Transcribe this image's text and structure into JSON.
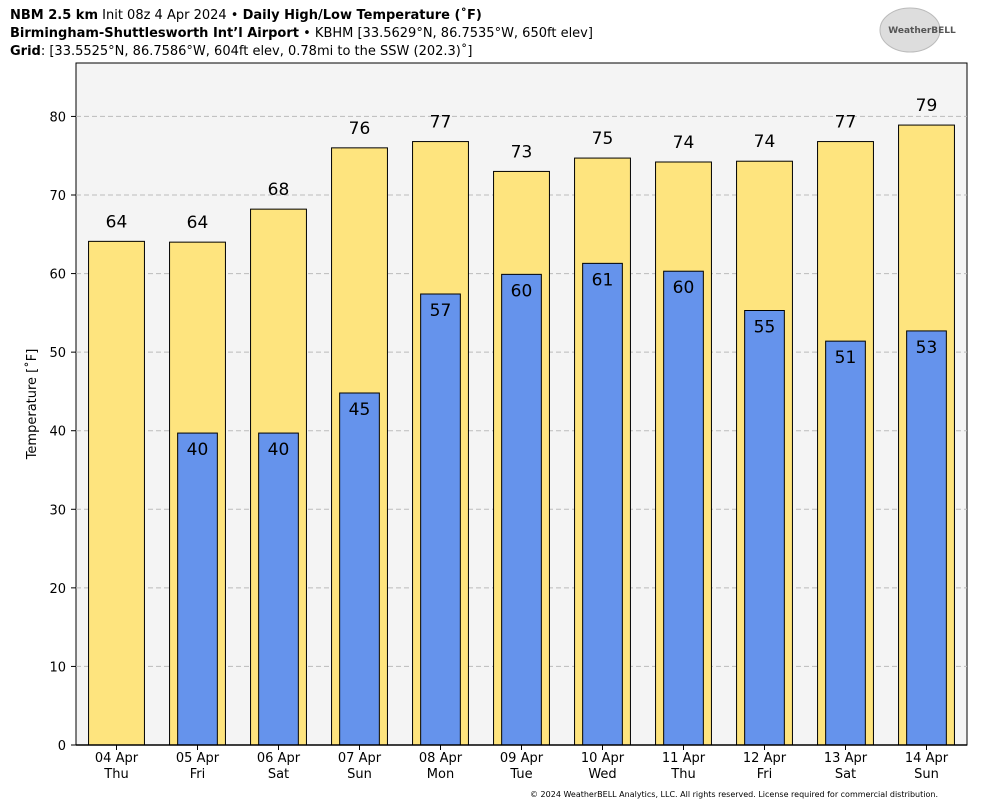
{
  "chart_data": {
    "type": "bar",
    "title_parts": [
      "NBM 2.5 km",
      "Init 08z 4 Apr 2024",
      "Daily High/Low Temperature (˚F)"
    ],
    "location_parts": [
      "Birmingham-Shuttlesworth Int’l Airport",
      "KBHM [33.5629°N, 86.7535°W, 650ft elev]"
    ],
    "grid_parts": [
      "Grid",
      ": [33.5525°N, 86.7586°W, 604ft elev, 0.78mi to the SSW (202.3)˚]"
    ],
    "logo": "WeatherBELL",
    "footer": "© 2024 WeatherBELL Analytics, LLC. All rights reserved. License required for commercial distribution.",
    "ylabel": "Temperature [˚F]",
    "categories": [
      "04 Apr",
      "05 Apr",
      "06 Apr",
      "07 Apr",
      "08 Apr",
      "09 Apr",
      "10 Apr",
      "11 Apr",
      "12 Apr",
      "13 Apr",
      "14 Apr"
    ],
    "weekdays": [
      "Thu",
      "Fri",
      "Sat",
      "Sun",
      "Mon",
      "Tue",
      "Wed",
      "Thu",
      "Fri",
      "Sat",
      "Sun"
    ],
    "series": [
      {
        "color": "#fee47e",
        "values": [
          64.1,
          64.0,
          68.2,
          76.0,
          76.8,
          73.0,
          74.7,
          74.2,
          74.3,
          76.8,
          78.9
        ],
        "value_labels": [
          "64",
          "64",
          "68",
          "76",
          "77",
          "73",
          "75",
          "74",
          "74",
          "77",
          "79"
        ]
      },
      {
        "color": "#6593ec",
        "values": [
          null,
          39.7,
          39.7,
          44.8,
          57.4,
          59.9,
          61.3,
          60.3,
          55.3,
          51.4,
          52.7
        ],
        "value_labels": [
          null,
          "40",
          "40",
          "45",
          "57",
          "60",
          "61",
          "60",
          "55",
          "51",
          "53"
        ]
      }
    ],
    "ylim": [
      0,
      86.8
    ],
    "yticks": [
      0,
      10,
      20,
      30,
      40,
      50,
      60,
      70,
      80
    ],
    "grid": true,
    "background": "#f4f4f4"
  }
}
